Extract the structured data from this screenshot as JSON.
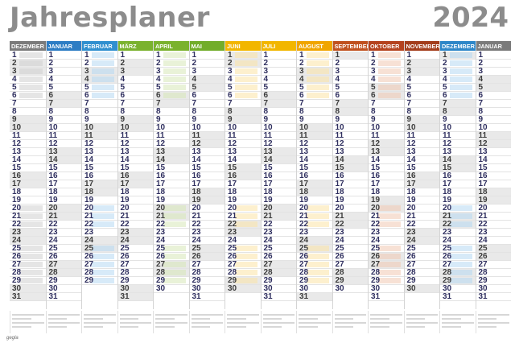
{
  "header": {
    "title": "Jahresplaner",
    "year": "2024"
  },
  "colors": {
    "dez_prev": "#7b7b7b",
    "jan": "#2d7dc4",
    "feb": "#2f8fcf",
    "mar": "#7ab22e",
    "apr": "#7ab22e",
    "mai": "#72ad2a",
    "jun": "#f2b600",
    "jul": "#f2b600",
    "aug": "#f0a500",
    "sep": "#c0501e",
    "okt": "#b4421e",
    "nov": "#a33d1b",
    "dez": "#2d86c8",
    "jan_next": "#7b7b7b",
    "weekend": "#e9e9e9",
    "holiday": "#f4b9b9"
  },
  "months": [
    {
      "name": "DEZEMBER",
      "days": 31,
      "start": 4,
      "color_key": "dez_prev",
      "band": "#cfcfcf"
    },
    {
      "name": "JANUAR",
      "days": 31,
      "start": 0,
      "color_key": "jan",
      "band": "#b7d8f2"
    },
    {
      "name": "FEBRUAR",
      "days": 29,
      "start": 3,
      "color_key": "feb",
      "band": "#b7d8f2"
    },
    {
      "name": "MÄRZ",
      "days": 31,
      "start": 4,
      "color_key": "mar",
      "band": "#d7e8b8"
    },
    {
      "name": "APRIL",
      "days": 30,
      "start": 0,
      "color_key": "apr",
      "band": "#d7e8b8"
    },
    {
      "name": "MAI",
      "days": 31,
      "start": 2,
      "color_key": "mai",
      "band": "#d7e8b8"
    },
    {
      "name": "JUNI",
      "days": 30,
      "start": 5,
      "color_key": "jun",
      "band": "#fbe3a6"
    },
    {
      "name": "JULI",
      "days": 31,
      "start": 0,
      "color_key": "jul",
      "band": "#fbe3a6"
    },
    {
      "name": "AUGUST",
      "days": 31,
      "start": 3,
      "color_key": "aug",
      "band": "#fbe3a6"
    },
    {
      "name": "SEPTEMBER",
      "days": 30,
      "start": 6,
      "color_key": "sep",
      "band": "#f1c9b3"
    },
    {
      "name": "OKTOBER",
      "days": 31,
      "start": 1,
      "color_key": "okt",
      "band": "#f1c9b3"
    },
    {
      "name": "NOVEMBER",
      "days": 30,
      "start": 4,
      "color_key": "nov",
      "band": "#f1c9b3"
    },
    {
      "name": "DEZEMBER",
      "days": 31,
      "start": 6,
      "color_key": "dez",
      "band": "#b7d8f2"
    },
    {
      "name": "JANUAR",
      "days": 31,
      "start": 2,
      "color_key": "jan_next",
      "band": "#cfcfcf"
    }
  ],
  "footer": {
    "brand": "gegla"
  }
}
